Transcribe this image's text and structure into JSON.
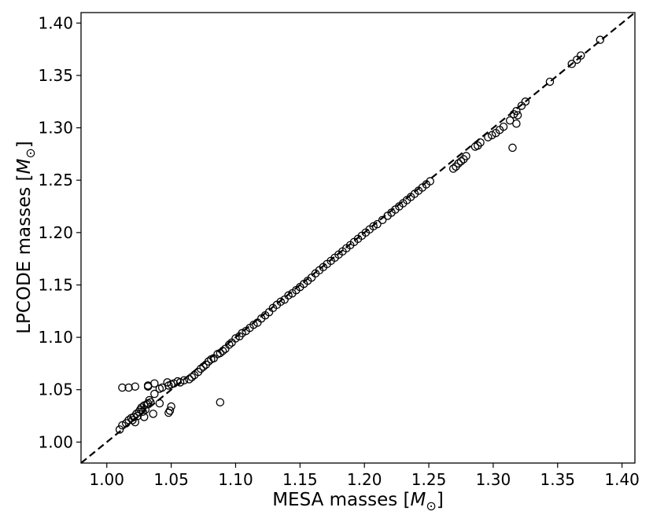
{
  "chart_data": {
    "type": "scatter",
    "title": "",
    "xlabel": "MESA masses [",
    "ylabel": "LPCODE masses [",
    "unit_symbol": "M",
    "unit_subscript": "⊙",
    "unit_close": "]",
    "xlim": [
      0.98,
      1.41
    ],
    "ylim": [
      0.98,
      1.41
    ],
    "xticks": [
      "1.00",
      "1.05",
      "1.10",
      "1.15",
      "1.20",
      "1.25",
      "1.30",
      "1.35",
      "1.40"
    ],
    "yticks": [
      "1.00",
      "1.05",
      "1.10",
      "1.15",
      "1.20",
      "1.25",
      "1.30",
      "1.35",
      "1.40"
    ],
    "xtick_values": [
      1.0,
      1.05,
      1.1,
      1.15,
      1.2,
      1.25,
      1.3,
      1.35,
      1.4
    ],
    "ytick_values": [
      1.0,
      1.05,
      1.1,
      1.15,
      1.2,
      1.25,
      1.3,
      1.35,
      1.4
    ],
    "grid": false,
    "reference_line": {
      "style": "dashed",
      "color": "#000000",
      "from": [
        0.98,
        0.98
      ],
      "to": [
        1.41,
        1.41
      ]
    },
    "marker": {
      "shape": "open-circle",
      "color": "#000000"
    },
    "points": [
      [
        1.01,
        1.012
      ],
      [
        1.012,
        1.016
      ],
      [
        1.015,
        1.018
      ],
      [
        1.017,
        1.021
      ],
      [
        1.019,
        1.023
      ],
      [
        1.02,
        1.021
      ],
      [
        1.021,
        1.024
      ],
      [
        1.022,
        1.019
      ],
      [
        1.023,
        1.027
      ],
      [
        1.024,
        1.025
      ],
      [
        1.025,
        1.029
      ],
      [
        1.026,
        1.031
      ],
      [
        1.027,
        1.033
      ],
      [
        1.028,
        1.029
      ],
      [
        1.029,
        1.035
      ],
      [
        1.03,
        1.031
      ],
      [
        1.031,
        1.036
      ],
      [
        1.032,
        1.037
      ],
      [
        1.033,
        1.04
      ],
      [
        1.034,
        1.038
      ],
      [
        1.012,
        1.052
      ],
      [
        1.017,
        1.052
      ],
      [
        1.022,
        1.053
      ],
      [
        1.032,
        1.054
      ],
      [
        1.032,
        1.053
      ],
      [
        1.037,
        1.056
      ],
      [
        1.041,
        1.051
      ],
      [
        1.043,
        1.052
      ],
      [
        1.047,
        1.057
      ],
      [
        1.048,
        1.054
      ],
      [
        1.05,
        1.055
      ],
      [
        1.052,
        1.056
      ],
      [
        1.055,
        1.058
      ],
      [
        1.057,
        1.057
      ],
      [
        1.029,
        1.024
      ],
      [
        1.036,
        1.027
      ],
      [
        1.041,
        1.037
      ],
      [
        1.048,
        1.028
      ],
      [
        1.049,
        1.03
      ],
      [
        1.05,
        1.034
      ],
      [
        1.088,
        1.038
      ],
      [
        1.037,
        1.046
      ],
      [
        1.06,
        1.059
      ],
      [
        1.064,
        1.06
      ],
      [
        1.066,
        1.062
      ],
      [
        1.068,
        1.064
      ],
      [
        1.071,
        1.067
      ],
      [
        1.073,
        1.07
      ],
      [
        1.075,
        1.072
      ],
      [
        1.077,
        1.074
      ],
      [
        1.079,
        1.077
      ],
      [
        1.081,
        1.079
      ],
      [
        1.083,
        1.08
      ],
      [
        1.086,
        1.084
      ],
      [
        1.088,
        1.085
      ],
      [
        1.09,
        1.087
      ],
      [
        1.092,
        1.089
      ],
      [
        1.095,
        1.093
      ],
      [
        1.097,
        1.095
      ],
      [
        1.1,
        1.099
      ],
      [
        1.103,
        1.101
      ],
      [
        1.105,
        1.104
      ],
      [
        1.108,
        1.106
      ],
      [
        1.111,
        1.109
      ],
      [
        1.114,
        1.112
      ],
      [
        1.117,
        1.114
      ],
      [
        1.12,
        1.118
      ],
      [
        1.123,
        1.121
      ],
      [
        1.126,
        1.124
      ],
      [
        1.129,
        1.128
      ],
      [
        1.132,
        1.131
      ],
      [
        1.135,
        1.134
      ],
      [
        1.138,
        1.136
      ],
      [
        1.141,
        1.14
      ],
      [
        1.144,
        1.142
      ],
      [
        1.147,
        1.145
      ],
      [
        1.15,
        1.148
      ],
      [
        1.153,
        1.151
      ],
      [
        1.156,
        1.154
      ],
      [
        1.159,
        1.157
      ],
      [
        1.162,
        1.161
      ],
      [
        1.165,
        1.164
      ],
      [
        1.168,
        1.167
      ],
      [
        1.171,
        1.17
      ],
      [
        1.174,
        1.173
      ],
      [
        1.177,
        1.176
      ],
      [
        1.18,
        1.179
      ],
      [
        1.183,
        1.182
      ],
      [
        1.186,
        1.185
      ],
      [
        1.189,
        1.188
      ],
      [
        1.192,
        1.191
      ],
      [
        1.195,
        1.194
      ],
      [
        1.198,
        1.197
      ],
      [
        1.201,
        1.2
      ],
      [
        1.204,
        1.203
      ],
      [
        1.207,
        1.206
      ],
      [
        1.21,
        1.208
      ],
      [
        1.214,
        1.212
      ],
      [
        1.218,
        1.216
      ],
      [
        1.221,
        1.219
      ],
      [
        1.224,
        1.222
      ],
      [
        1.227,
        1.225
      ],
      [
        1.23,
        1.228
      ],
      [
        1.233,
        1.231
      ],
      [
        1.236,
        1.234
      ],
      [
        1.239,
        1.237
      ],
      [
        1.242,
        1.24
      ],
      [
        1.245,
        1.243
      ],
      [
        1.248,
        1.246
      ],
      [
        1.251,
        1.249
      ],
      [
        1.269,
        1.261
      ],
      [
        1.271,
        1.263
      ],
      [
        1.273,
        1.266
      ],
      [
        1.275,
        1.268
      ],
      [
        1.277,
        1.27
      ],
      [
        1.279,
        1.273
      ],
      [
        1.286,
        1.282
      ],
      [
        1.288,
        1.283
      ],
      [
        1.29,
        1.286
      ],
      [
        1.296,
        1.291
      ],
      [
        1.299,
        1.293
      ],
      [
        1.302,
        1.295
      ],
      [
        1.305,
        1.298
      ],
      [
        1.308,
        1.301
      ],
      [
        1.313,
        1.307
      ],
      [
        1.316,
        1.313
      ],
      [
        1.318,
        1.316
      ],
      [
        1.319,
        1.312
      ],
      [
        1.322,
        1.321
      ],
      [
        1.325,
        1.325
      ],
      [
        1.315,
        1.281
      ],
      [
        1.318,
        1.304
      ],
      [
        1.344,
        1.344
      ],
      [
        1.361,
        1.361
      ],
      [
        1.365,
        1.365
      ],
      [
        1.368,
        1.369
      ],
      [
        1.383,
        1.384
      ]
    ]
  }
}
